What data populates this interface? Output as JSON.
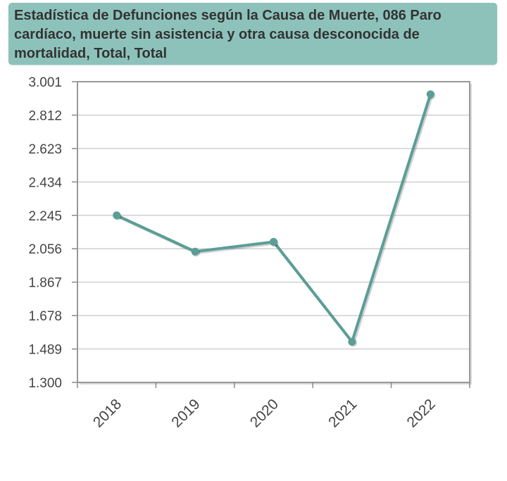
{
  "chart_data": {
    "type": "line",
    "title": "Estadística de Defunciones según la Causa de Muerte, 086 Paro cardíaco, muerte sin asistencia y otra causa desconocida de mortalidad, Total, Total",
    "xlabel": "",
    "ylabel": "",
    "categories": [
      "2018",
      "2019",
      "2020",
      "2021",
      "2022"
    ],
    "series": [
      {
        "values": [
          2245,
          2040,
          2095,
          1530,
          2930
        ]
      }
    ],
    "yticks": [
      "3.001",
      "2.812",
      "2.623",
      "2.434",
      "2.245",
      "2.056",
      "1.867",
      "1.678",
      "1.489",
      "1.300"
    ],
    "ylim": [
      1300,
      3001
    ],
    "grid": true,
    "line_color": "#5a9e96",
    "title_bg": "#8dc2bb"
  }
}
